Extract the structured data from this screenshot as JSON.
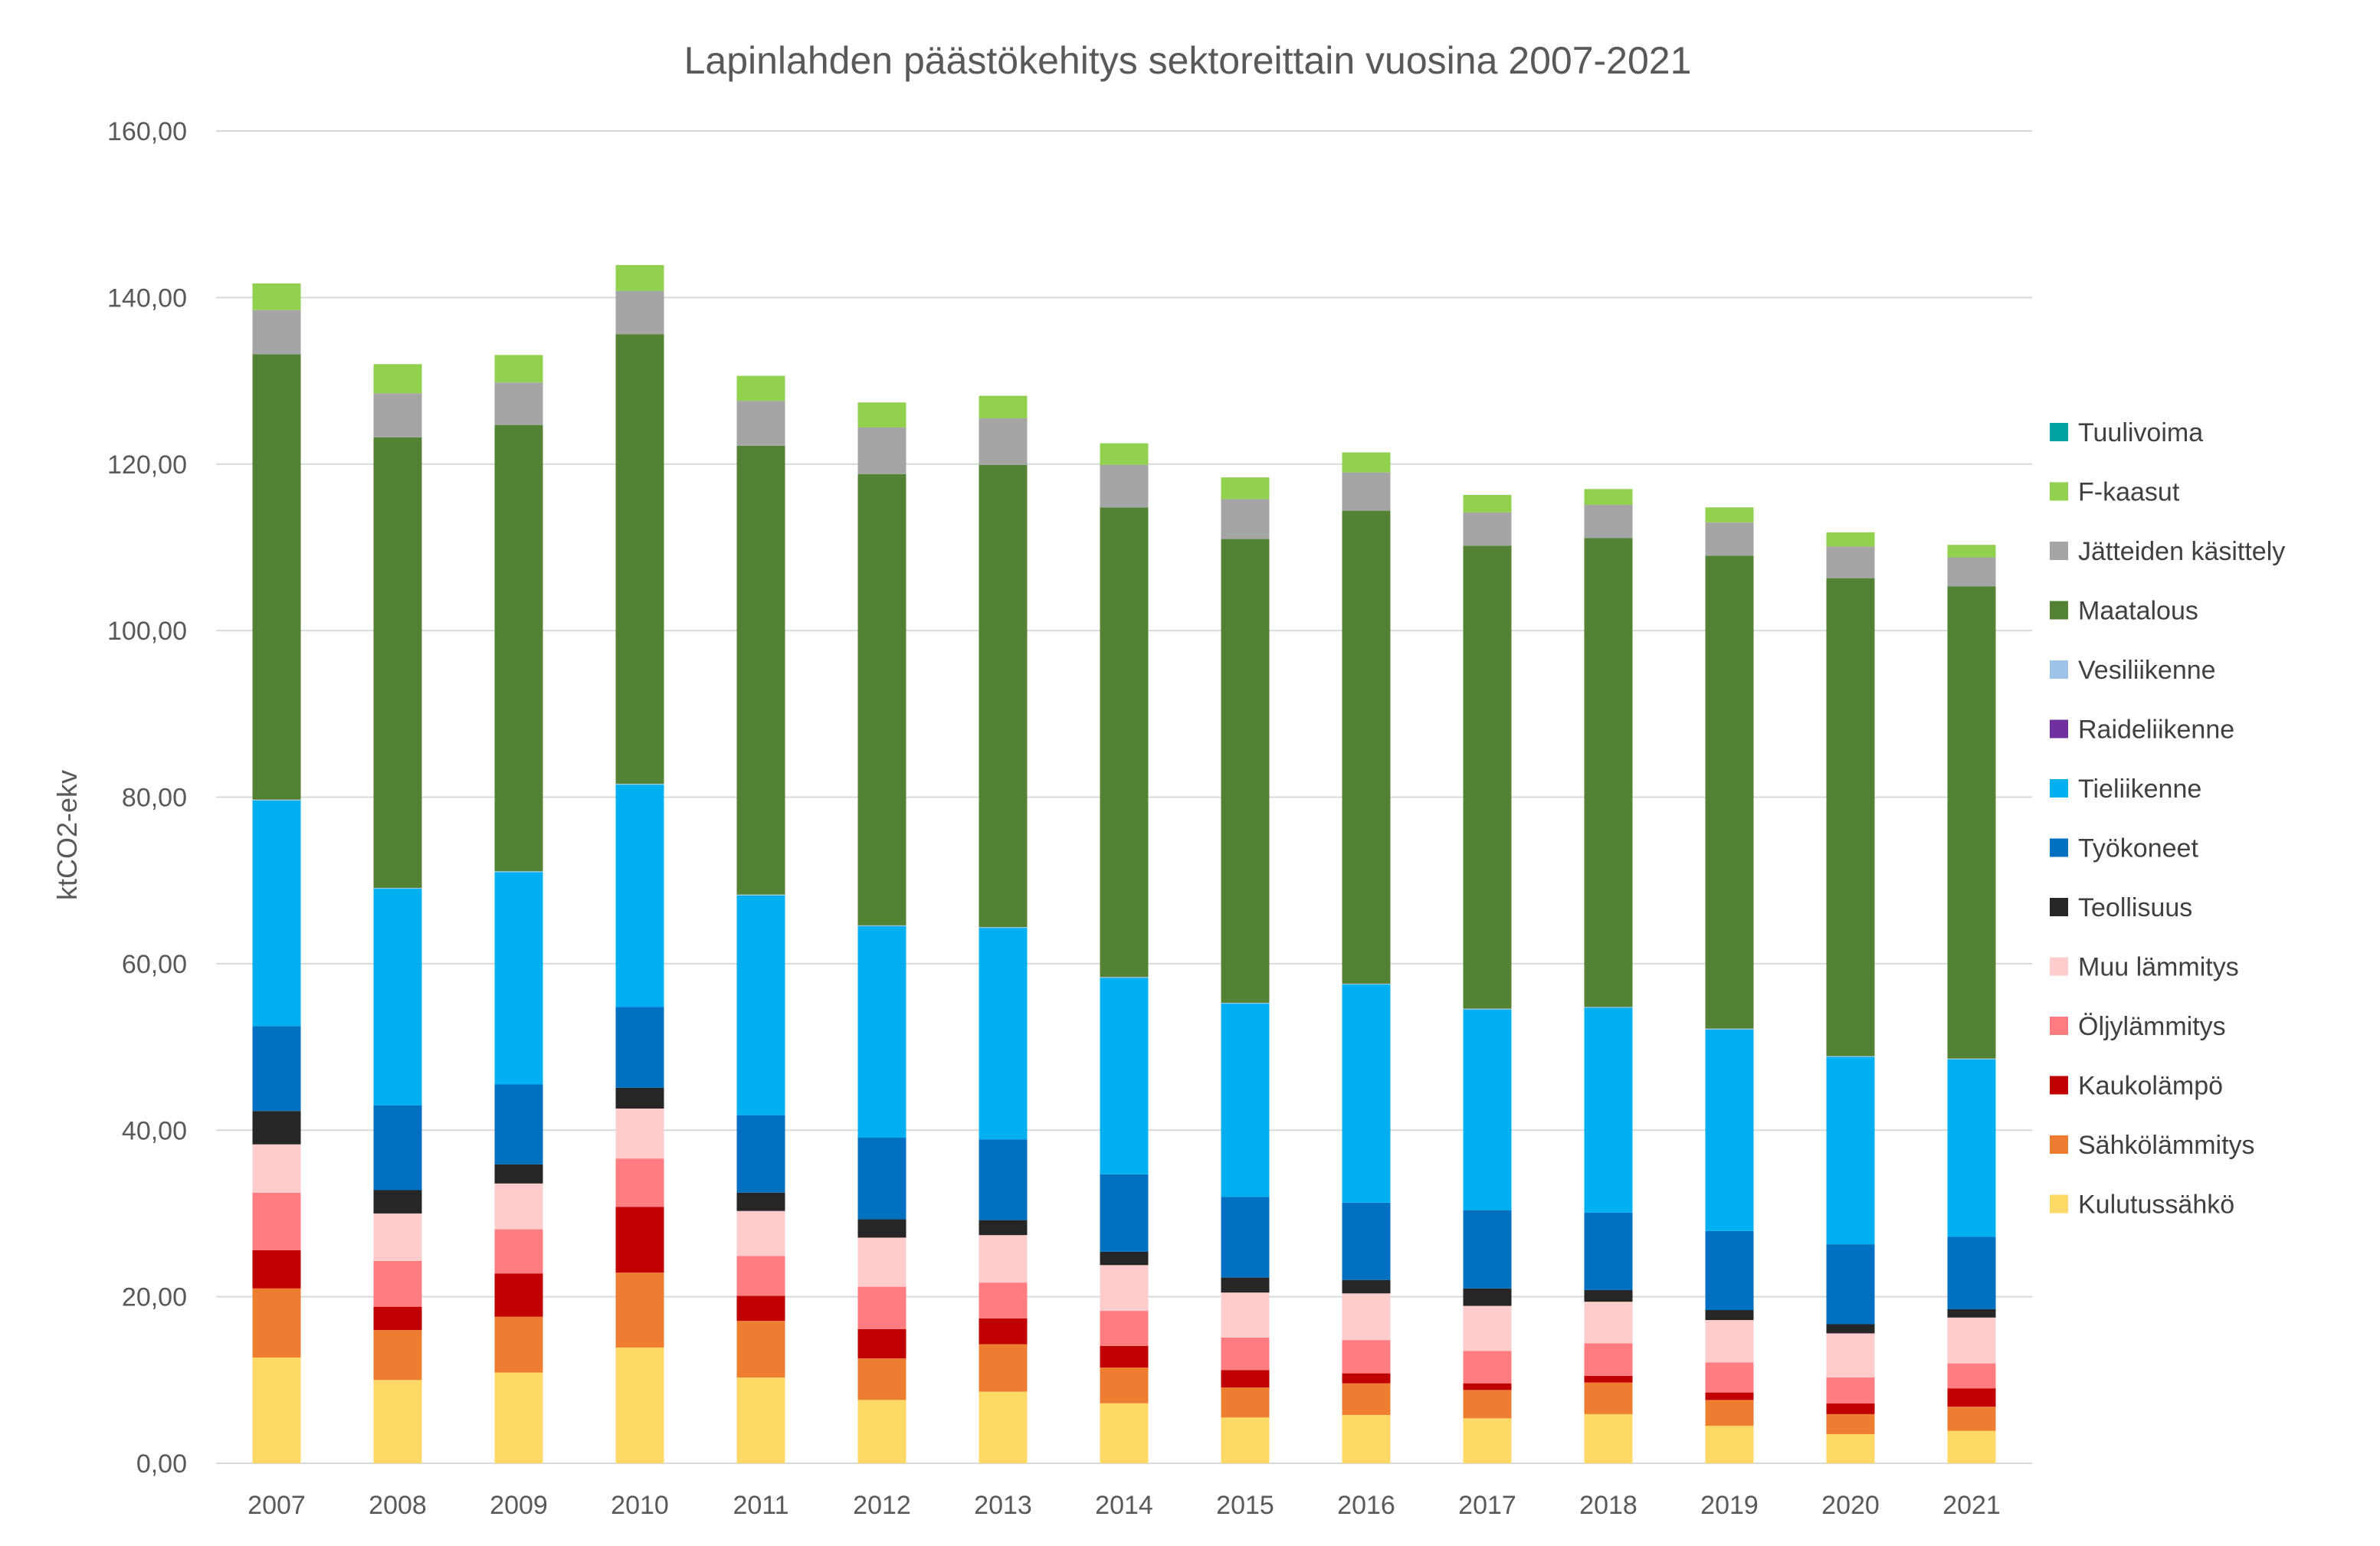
{
  "chart_data": {
    "type": "bar",
    "stacked": true,
    "title": "Lapinlahden päästökehitys sektoreittain vuosina 2007-2021",
    "xlabel": "",
    "ylabel": "ktCO2-ekv",
    "ylim": [
      0,
      160
    ],
    "yticks": [
      "0,00",
      "20,00",
      "40,00",
      "60,00",
      "80,00",
      "100,00",
      "120,00",
      "140,00",
      "160,00"
    ],
    "grid": true,
    "legend_position": "right",
    "categories": [
      "2007",
      "2008",
      "2009",
      "2010",
      "2011",
      "2012",
      "2013",
      "2014",
      "2015",
      "2016",
      "2017",
      "2018",
      "2019",
      "2020",
      "2021"
    ],
    "series": [
      {
        "name": "Kulutussähkö",
        "color": "#FFD966",
        "values": [
          12.7,
          10.0,
          10.9,
          13.9,
          10.3,
          7.6,
          8.6,
          7.2,
          5.5,
          5.8,
          5.4,
          5.9,
          4.5,
          3.5,
          3.9
        ]
      },
      {
        "name": "Sähkölämmitys",
        "color": "#ED7D31",
        "values": [
          8.3,
          6.0,
          6.7,
          9.0,
          6.8,
          5.0,
          5.7,
          4.3,
          3.6,
          3.8,
          3.4,
          3.8,
          3.1,
          2.4,
          2.9
        ]
      },
      {
        "name": "Kaukolämpö",
        "color": "#C00000",
        "values": [
          4.6,
          2.8,
          5.2,
          7.9,
          3.0,
          3.5,
          3.1,
          2.6,
          2.1,
          1.2,
          0.8,
          0.8,
          0.9,
          1.3,
          2.2
        ]
      },
      {
        "name": "Öljylämmitys",
        "color": "#FF7C80",
        "values": [
          6.9,
          5.5,
          5.3,
          5.8,
          4.8,
          5.1,
          4.3,
          4.2,
          3.9,
          4.0,
          3.9,
          3.9,
          3.6,
          3.1,
          3.0
        ]
      },
      {
        "name": "Muu lämmitys",
        "color": "#FFCCCC",
        "values": [
          5.8,
          5.7,
          5.5,
          6.0,
          5.4,
          5.9,
          5.7,
          5.5,
          5.4,
          5.6,
          5.4,
          5.0,
          5.1,
          5.3,
          5.5
        ]
      },
      {
        "name": "Teollisuus",
        "color": "#262626",
        "values": [
          4.0,
          2.8,
          2.3,
          2.5,
          2.2,
          2.2,
          1.8,
          1.6,
          1.8,
          1.6,
          2.1,
          1.4,
          1.2,
          1.1,
          1.0
        ]
      },
      {
        "name": "Työkoneet",
        "color": "#0070C0",
        "values": [
          10.2,
          10.2,
          9.6,
          9.7,
          9.3,
          9.8,
          9.7,
          9.3,
          9.7,
          9.3,
          9.4,
          9.3,
          9.5,
          9.6,
          8.7
        ]
      },
      {
        "name": "Tieliikenne",
        "color": "#00B0F0",
        "values": [
          27.1,
          26.0,
          25.5,
          26.7,
          26.4,
          25.4,
          25.4,
          23.6,
          23.2,
          26.2,
          24.1,
          24.6,
          24.2,
          22.5,
          21.3
        ]
      },
      {
        "name": "Raideliikenne",
        "color": "#7030A0",
        "values": [
          0,
          0,
          0,
          0,
          0,
          0,
          0,
          0,
          0,
          0,
          0,
          0,
          0,
          0,
          0
        ]
      },
      {
        "name": "Vesiliikenne",
        "color": "#9DC3E6",
        "values": [
          0.1,
          0.1,
          0.1,
          0.1,
          0.1,
          0.1,
          0.1,
          0.1,
          0.1,
          0.1,
          0.1,
          0.1,
          0.1,
          0.1,
          0.1
        ]
      },
      {
        "name": "Maatalous",
        "color": "#548235",
        "values": [
          53.5,
          54.1,
          53.6,
          54.0,
          53.9,
          54.2,
          55.5,
          56.4,
          55.7,
          56.8,
          55.6,
          56.3,
          56.8,
          57.4,
          56.7
        ]
      },
      {
        "name": "Jätteiden käsittely",
        "color": "#A5A5A5",
        "values": [
          5.3,
          5.3,
          5.1,
          5.2,
          5.4,
          5.6,
          5.6,
          5.1,
          4.8,
          4.6,
          4.0,
          4.0,
          4.0,
          3.8,
          3.5
        ]
      },
      {
        "name": "F-kaasut",
        "color": "#92D050",
        "values": [
          3.2,
          3.5,
          3.3,
          3.1,
          3.0,
          3.0,
          2.7,
          2.6,
          2.6,
          2.4,
          2.1,
          1.9,
          1.8,
          1.7,
          1.5
        ]
      },
      {
        "name": "Tuulivoima",
        "color": "#00A3A3",
        "values": [
          0,
          0,
          0,
          0,
          0,
          0,
          0,
          0,
          0,
          0,
          0,
          0,
          0,
          0,
          0
        ]
      }
    ]
  }
}
